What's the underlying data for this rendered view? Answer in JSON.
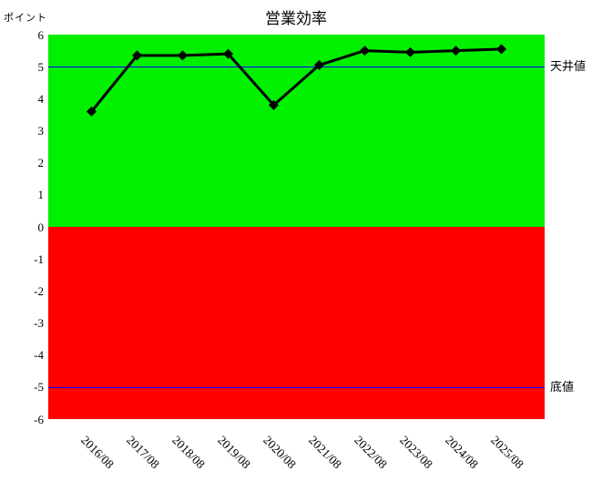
{
  "title": "営業効率",
  "y_unit_label": "ポイント",
  "colors": {
    "positive_band": "#00f000",
    "negative_band": "#ff0000",
    "threshold_line": "#0000ff",
    "series_line": "#000000"
  },
  "chart_data": {
    "type": "line",
    "title": "営業効率",
    "ylabel": "ポイント",
    "categories": [
      "2016/08",
      "2017/08",
      "2018/08",
      "2019/08",
      "2020/08",
      "2021/08",
      "2022/08",
      "2023/08",
      "2024/08",
      "2025/08"
    ],
    "values": [
      3.6,
      5.35,
      5.35,
      5.4,
      3.8,
      5.05,
      5.5,
      5.45,
      5.5,
      5.55
    ],
    "ylim": [
      -6,
      6
    ],
    "yticks": [
      6,
      5,
      4,
      3,
      2,
      1,
      0,
      -1,
      -2,
      -3,
      -4,
      -5,
      -6
    ],
    "grid": false,
    "legend": "none",
    "marker": "diamond",
    "annotations": [
      {
        "text": "天井値",
        "y": 5
      },
      {
        "text": "底値",
        "y": -5
      }
    ]
  }
}
